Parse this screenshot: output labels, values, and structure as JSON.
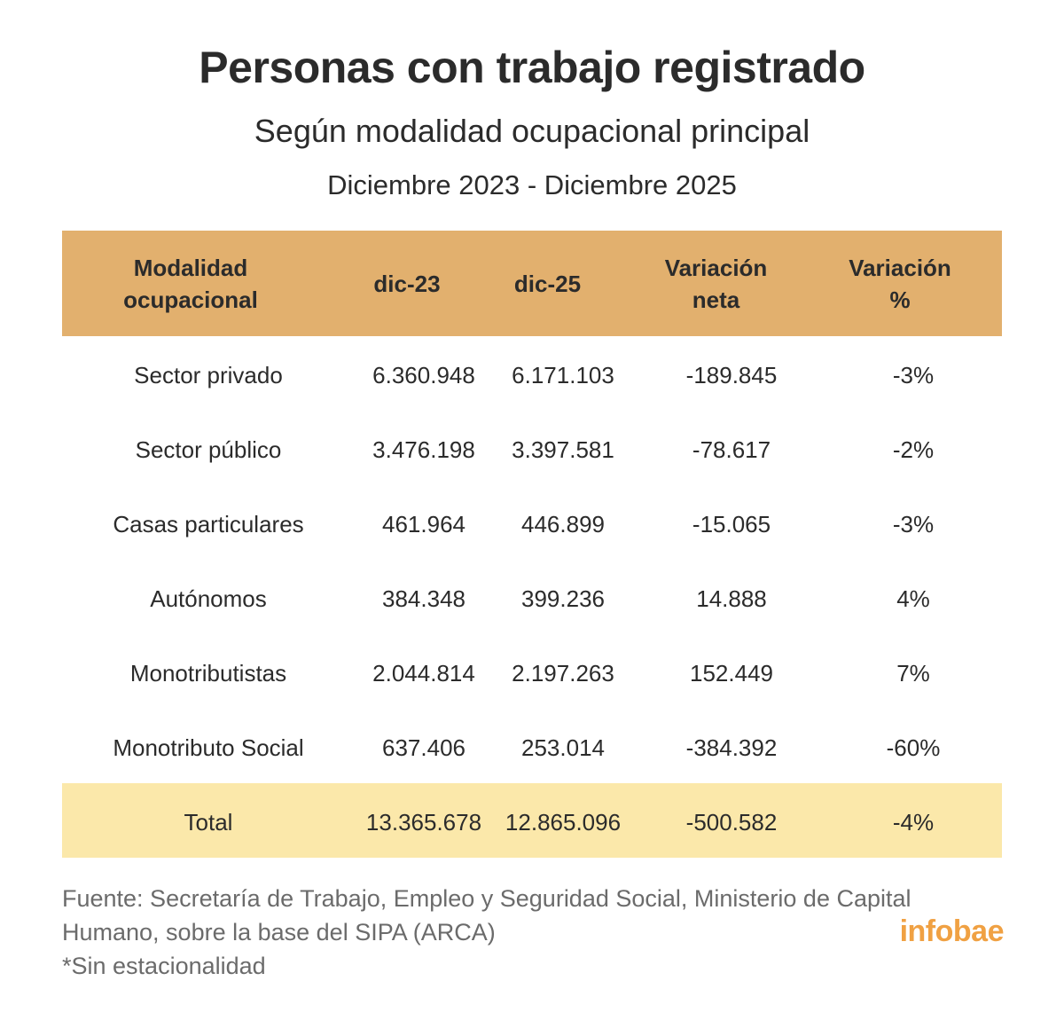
{
  "title": "Personas con trabajo registrado",
  "subtitle": "Según modalidad ocupacional principal",
  "date_range": "Diciembre 2023 - Diciembre 2025",
  "colors": {
    "header_bg": "#e2b06e",
    "total_bg": "#fbe8aa",
    "logo": "#f0a143",
    "text": "#2b2b2b",
    "footer_text": "#6b6b6b"
  },
  "chart_data": {
    "type": "table",
    "title": "Personas con trabajo registrado",
    "columns": [
      {
        "line1": "Modalidad",
        "line2": "ocupacional"
      },
      {
        "line1": "dic-23",
        "line2": ""
      },
      {
        "line1": "dic-25",
        "line2": ""
      },
      {
        "line1": "Variación",
        "line2": "neta"
      },
      {
        "line1": "Variación",
        "line2": "%"
      }
    ],
    "rows": [
      [
        "Sector privado",
        "6.360.948",
        "6.171.103",
        "-189.845",
        "-3%"
      ],
      [
        "Sector público",
        "3.476.198",
        "3.397.581",
        "-78.617",
        "-2%"
      ],
      [
        "Casas particulares",
        "461.964",
        "446.899",
        "-15.065",
        "-3%"
      ],
      [
        "Autónomos",
        "384.348",
        "399.236",
        "14.888",
        "4%"
      ],
      [
        "Monotributistas",
        "2.044.814",
        "2.197.263",
        "152.449",
        "7%"
      ],
      [
        "Monotributo Social",
        "637.406",
        "253.014",
        "-384.392",
        "-60%"
      ]
    ],
    "total": [
      "Total",
      "13.365.678",
      "12.865.096",
      "-500.582",
      "-4%"
    ]
  },
  "footer": {
    "source_line1": "Fuente: Secretaría de Trabajo, Empleo y Seguridad Social, Ministerio de Capital",
    "source_line2": "Humano, sobre la base del SIPA (ARCA)",
    "note": "*Sin estacionalidad"
  },
  "logo": "infobae"
}
